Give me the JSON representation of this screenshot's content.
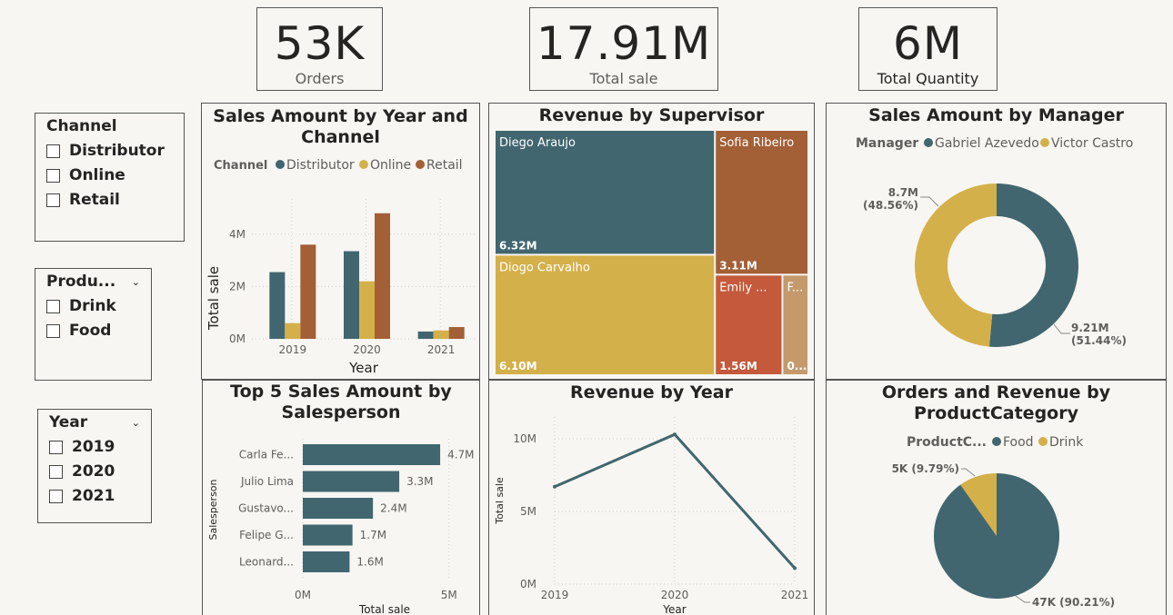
{
  "kpis": {
    "orders": {
      "value": "53K",
      "label": "Orders"
    },
    "total_sale": {
      "value": "17.91M",
      "label": "Total sale"
    },
    "total_quantity": {
      "value": "6M",
      "label": "Total Quantity"
    }
  },
  "slicers": {
    "channel": {
      "title": "Channel",
      "items": [
        "Distributor",
        "Online",
        "Retail"
      ]
    },
    "product": {
      "title": "Produ...",
      "items": [
        "Drink",
        "Food"
      ]
    },
    "year": {
      "title": "Year",
      "items": [
        "2019",
        "2020",
        "2021"
      ]
    }
  },
  "colors": {
    "teal": "#41666f",
    "gold": "#d4b04a",
    "rust": "#a35f36",
    "red": "#c4593b",
    "tan": "#c49a6c",
    "grid": "#d0d0d0"
  },
  "charts": {
    "year_channel": {
      "title_line1": "Sales Amount by Year and",
      "title_line2": "Channel",
      "legend_title": "Channel",
      "xlabel": "Year",
      "ylabel": "Total sale",
      "y_ticks": [
        "0M",
        "2M",
        "4M"
      ]
    },
    "supervisor": {
      "title": "Revenue by Supervisor"
    },
    "manager": {
      "title": "Sales Amount by Manager",
      "legend_title": "Manager"
    },
    "salesperson": {
      "title_line1": "Top 5 Sales Amount by",
      "title_line2": "Salesperson",
      "xlabel": "Total sale",
      "ylabel": "Salesperson",
      "x_ticks": [
        "0M",
        "5M"
      ]
    },
    "rev_year": {
      "title": "Revenue by Year",
      "xlabel": "Year",
      "ylabel": "Total sale",
      "y_ticks": [
        "0M",
        "5M",
        "10M"
      ]
    },
    "category": {
      "title_line1": "Orders and Revenue by",
      "title_line2": "ProductCategory",
      "legend_title": "ProductC..."
    }
  },
  "chart_data": [
    {
      "type": "bar",
      "title": "Sales Amount by Year and Channel",
      "xlabel": "Year",
      "ylabel": "Total sale",
      "categories": [
        "2019",
        "2020",
        "2021"
      ],
      "series": [
        {
          "name": "Distributor",
          "values": [
            2.55,
            3.35,
            0.28
          ]
        },
        {
          "name": "Online",
          "values": [
            0.6,
            2.2,
            0.32
          ]
        },
        {
          "name": "Retail",
          "values": [
            3.6,
            4.8,
            0.45
          ]
        }
      ],
      "ylim": [
        0,
        5
      ],
      "unit": "M",
      "legend": "top"
    },
    {
      "type": "treemap",
      "title": "Revenue by Supervisor",
      "items": [
        {
          "name": "Diego Araujo",
          "label": "6.32M",
          "value": 6.32
        },
        {
          "name": "Diogo Carvalho",
          "label": "6.10M",
          "value": 6.1
        },
        {
          "name": "Sofia Ribeiro",
          "label": "3.11M",
          "value": 3.11
        },
        {
          "name": "Emily ...",
          "label": "1.56M",
          "value": 1.56
        },
        {
          "name": "F...",
          "label": "0....",
          "value": 0.6
        }
      ]
    },
    {
      "type": "pie",
      "title": "Sales Amount by Manager",
      "donut": true,
      "slices": [
        {
          "name": "Gabriel Azevedo",
          "value": 9.21,
          "label1": "9.21M",
          "label2": "(51.44%)"
        },
        {
          "name": "Victor Castro",
          "value": 8.7,
          "label1": "8.7M",
          "label2": "(48.56%)"
        }
      ]
    },
    {
      "type": "bar",
      "title": "Top 5 Sales Amount by Salesperson",
      "orientation": "horizontal",
      "xlabel": "Total sale",
      "ylabel": "Salesperson",
      "categories": [
        "Carla Fe...",
        "Julio Lima",
        "Gustavo...",
        "Felipe G...",
        "Leonard..."
      ],
      "values": [
        4.7,
        3.3,
        2.4,
        1.7,
        1.6
      ],
      "value_labels": [
        "4.7M",
        "3.3M",
        "2.4M",
        "1.7M",
        "1.6M"
      ],
      "xlim": [
        0,
        5.6
      ],
      "unit": "M"
    },
    {
      "type": "line",
      "title": "Revenue by Year",
      "xlabel": "Year",
      "ylabel": "Total sale",
      "x": [
        "2019",
        "2020",
        "2021"
      ],
      "values": [
        6.7,
        10.3,
        1.1
      ],
      "ylim": [
        0,
        11.5
      ],
      "unit": "M"
    },
    {
      "type": "pie",
      "title": "Orders and Revenue by ProductCategory",
      "slices": [
        {
          "name": "Food",
          "value": 90.21,
          "label": "47K (90.21%)"
        },
        {
          "name": "Drink",
          "value": 9.79,
          "label": "5K (9.79%)"
        }
      ]
    }
  ]
}
